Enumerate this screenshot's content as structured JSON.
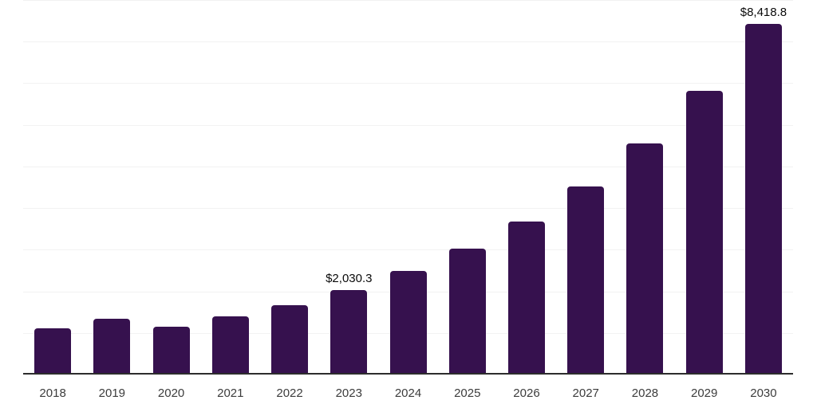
{
  "chart_data": {
    "type": "bar",
    "title": "",
    "xlabel": "",
    "ylabel": "",
    "categories": [
      "2018",
      "2019",
      "2020",
      "2021",
      "2022",
      "2023",
      "2024",
      "2025",
      "2026",
      "2027",
      "2028",
      "2029",
      "2030"
    ],
    "values": [
      1110,
      1335,
      1150,
      1395,
      1670,
      2030.3,
      2485,
      3020,
      3685,
      4525,
      5560,
      6820,
      8418.8
    ],
    "data_labels": [
      "",
      "",
      "",
      "",
      "",
      "$2,030.3",
      "",
      "",
      "",
      "",
      "",
      "",
      "$8,418.8"
    ],
    "ylim": [
      0,
      9000
    ],
    "gridline_interval": 1000,
    "grid": true,
    "legend": false,
    "colors": {
      "bar": "#36114E",
      "axis_line": "#2d2d2d",
      "gridline": "#f2f2f2",
      "tick_label": "#3c3c3c",
      "data_label": "#0a0a0a",
      "background": "#ffffff"
    }
  }
}
